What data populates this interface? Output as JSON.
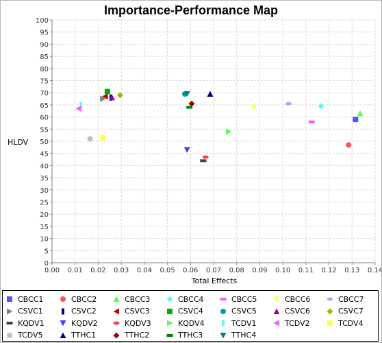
{
  "chart_data": {
    "type": "scatter",
    "title": "Importance-Performance Map",
    "xlabel": "Total Effects",
    "ylabel": "HLDV",
    "xlim": [
      0.0,
      0.14
    ],
    "ylim": [
      0,
      100
    ],
    "xticks": [
      "0.00",
      "0.01",
      "0.02",
      "0.03",
      "0.04",
      "0.05",
      "0.06",
      "0.07",
      "0.08",
      "0.09",
      "0.10",
      "0.11",
      "0.12",
      "0.13",
      "0.14"
    ],
    "yticks": [
      "0",
      "5",
      "10",
      "15",
      "20",
      "25",
      "30",
      "35",
      "40",
      "45",
      "50",
      "55",
      "60",
      "65",
      "70",
      "75",
      "80",
      "85",
      "90",
      "95",
      "100"
    ],
    "grid": true,
    "legend_position": "bottom",
    "series": [
      {
        "name": "CBCC1",
        "x": 0.1315,
        "y": 59.0,
        "color": "#5555ff",
        "marker": "square"
      },
      {
        "name": "CBCC2",
        "x": 0.1285,
        "y": 48.5,
        "color": "#ff5555",
        "marker": "circle"
      },
      {
        "name": "CBCC3",
        "x": 0.1335,
        "y": 61.5,
        "color": "#55ff55",
        "marker": "triangle-up"
      },
      {
        "name": "CBCC4",
        "x": 0.1165,
        "y": 64.5,
        "color": "#55ffff",
        "marker": "diamond"
      },
      {
        "name": "CBCC5",
        "x": 0.1125,
        "y": 58.0,
        "color": "#ff55ff",
        "marker": "hbar"
      },
      {
        "name": "CBCC6",
        "x": 0.0875,
        "y": 64.0,
        "color": "#ffff55",
        "marker": "triangle-down"
      },
      {
        "name": "CBCC7",
        "x": 0.1025,
        "y": 65.5,
        "color": "#aaaaff",
        "marker": "ellipse"
      },
      {
        "name": "CSVC1",
        "x": 0.022,
        "y": 67.5,
        "color": "#808080",
        "marker": "triangle-right"
      },
      {
        "name": "CSVC2",
        "x": 0.0255,
        "y": 68.0,
        "color": "#000080",
        "marker": "vbar"
      },
      {
        "name": "CSVC3",
        "x": 0.023,
        "y": 68.5,
        "color": "#c00000",
        "marker": "triangle-left"
      },
      {
        "name": "CSVC4",
        "x": 0.024,
        "y": 70.5,
        "color": "#00b000",
        "marker": "square"
      },
      {
        "name": "CSVC5",
        "x": 0.0575,
        "y": 69.5,
        "color": "#00a0a0",
        "marker": "circle"
      },
      {
        "name": "CSVC6",
        "x": 0.026,
        "y": 68.0,
        "color": "#a000a0",
        "marker": "triangle-up"
      },
      {
        "name": "CSVC7",
        "x": 0.0295,
        "y": 69.0,
        "color": "#b0b000",
        "marker": "diamond"
      },
      {
        "name": "KQDV1",
        "x": 0.0655,
        "y": 42.0,
        "color": "#404040",
        "marker": "hbar"
      },
      {
        "name": "KQDV2",
        "x": 0.0585,
        "y": 46.5,
        "color": "#4040ff",
        "marker": "triangle-down"
      },
      {
        "name": "KQDV3",
        "x": 0.0665,
        "y": 43.5,
        "color": "#ff4040",
        "marker": "ellipse"
      },
      {
        "name": "KQDV4",
        "x": 0.0765,
        "y": 54.0,
        "color": "#55ff55",
        "marker": "triangle-right"
      },
      {
        "name": "TCDV1",
        "x": 0.0125,
        "y": 65.0,
        "color": "#55ffff",
        "marker": "vbar"
      },
      {
        "name": "TCDV2",
        "x": 0.0115,
        "y": 63.5,
        "color": "#ff55ff",
        "marker": "triangle-left"
      },
      {
        "name": "TCDV4",
        "x": 0.022,
        "y": 51.5,
        "color": "#ffff55",
        "marker": "square"
      },
      {
        "name": "TCDV5",
        "x": 0.0165,
        "y": 51.0,
        "color": "#c0c0c0",
        "marker": "circle"
      },
      {
        "name": "TTHC1",
        "x": 0.0685,
        "y": 69.5,
        "color": "#000080",
        "marker": "triangle-up"
      },
      {
        "name": "TTHC2",
        "x": 0.0605,
        "y": 65.5,
        "color": "#a00000",
        "marker": "diamond"
      },
      {
        "name": "TTHC3",
        "x": 0.0595,
        "y": 64.0,
        "color": "#008000",
        "marker": "hbar"
      },
      {
        "name": "TTHC4",
        "x": 0.0585,
        "y": 69.5,
        "color": "#008080",
        "marker": "triangle-down"
      }
    ]
  }
}
